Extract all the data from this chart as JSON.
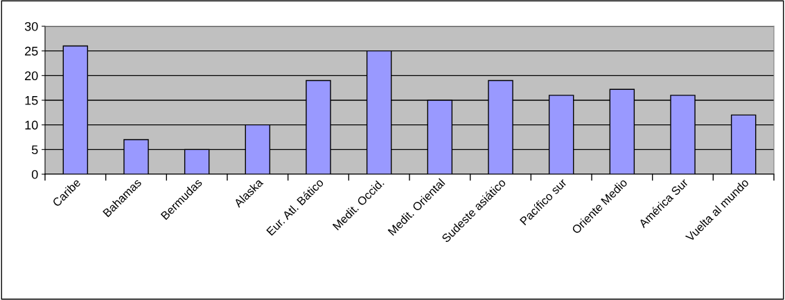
{
  "chart_data": {
    "type": "bar",
    "categories": [
      "Caribe",
      "Bahamas",
      "Bermudas",
      "Alaska",
      "Eur. Atl. Bático",
      "Medit. Occid.",
      "Medit. Oriental",
      "Sudeste asiático",
      "Pacífico sur",
      "Oriente Medio",
      "América Sur",
      "Vuelta al mundo"
    ],
    "values": [
      26,
      7,
      5,
      10,
      19,
      25,
      15,
      19,
      16,
      17.2,
      16,
      12
    ],
    "color": "#9999ff",
    "ylim": [
      0,
      30
    ],
    "yticks": [
      0,
      5,
      10,
      15,
      20,
      25,
      30
    ],
    "grid": "y"
  }
}
